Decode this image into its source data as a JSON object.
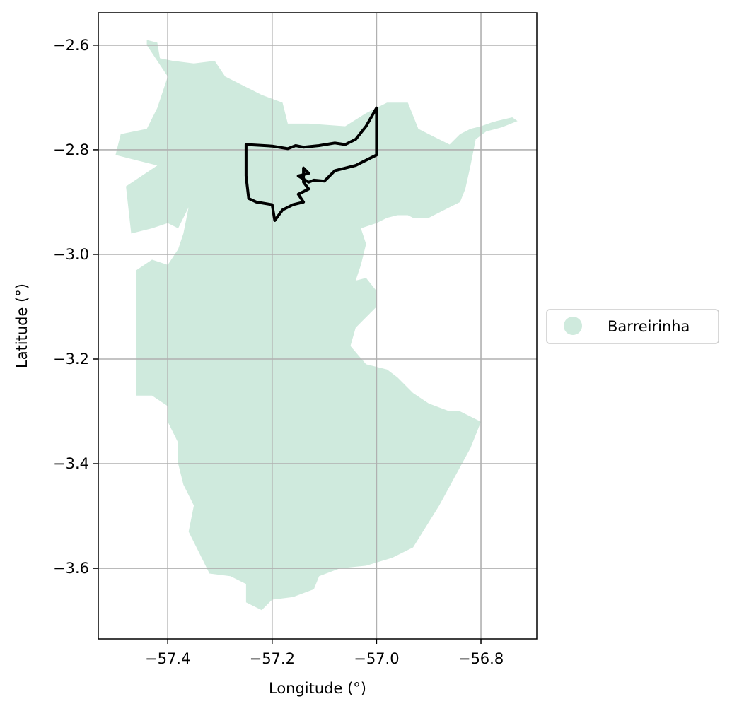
{
  "chart_data": {
    "type": "map",
    "xlabel": "Longitude (°)",
    "ylabel": "Latitude (°)",
    "xlim": [
      -57.533,
      -56.693
    ],
    "ylim": [
      -3.735,
      -2.538
    ],
    "x_ticks": [
      -57.4,
      -57.2,
      -57.0,
      -56.8
    ],
    "y_ticks": [
      -2.6,
      -2.8,
      -3.0,
      -3.2,
      -3.4,
      -3.6
    ],
    "x_tick_labels": [
      "−57.4",
      "−57.2",
      "−57.0",
      "−56.8"
    ],
    "y_tick_labels": [
      "−2.6",
      "−2.8",
      "−3.0",
      "−3.2",
      "−3.4",
      "−3.6"
    ],
    "grid": true,
    "legend": {
      "placement": "right",
      "entries": [
        {
          "label": "Barreirinha",
          "color": "#cfeadd"
        }
      ]
    },
    "colors": {
      "region_fill": "#cfeadd",
      "outline": "#000000",
      "grid": "#b0b0b0"
    },
    "region": {
      "name": "Barreirinha",
      "polygon": [
        [
          -57.44,
          -2.59
        ],
        [
          -57.42,
          -2.595
        ],
        [
          -57.415,
          -2.625
        ],
        [
          -57.39,
          -2.63
        ],
        [
          -57.35,
          -2.635
        ],
        [
          -57.31,
          -2.63
        ],
        [
          -57.29,
          -2.66
        ],
        [
          -57.25,
          -2.68
        ],
        [
          -57.22,
          -2.695
        ],
        [
          -57.18,
          -2.71
        ],
        [
          -57.17,
          -2.75
        ],
        [
          -57.13,
          -2.75
        ],
        [
          -57.06,
          -2.755
        ],
        [
          -57.02,
          -2.73
        ],
        [
          -56.98,
          -2.71
        ],
        [
          -56.94,
          -2.71
        ],
        [
          -56.92,
          -2.76
        ],
        [
          -56.9,
          -2.77
        ],
        [
          -56.86,
          -2.79
        ],
        [
          -56.84,
          -2.77
        ],
        [
          -56.82,
          -2.76
        ],
        [
          -56.8,
          -2.755
        ],
        [
          -56.78,
          -2.748
        ],
        [
          -56.77,
          -2.745
        ],
        [
          -56.74,
          -2.738
        ],
        [
          -56.73,
          -2.745
        ],
        [
          -56.76,
          -2.757
        ],
        [
          -56.79,
          -2.765
        ],
        [
          -56.81,
          -2.78
        ],
        [
          -56.82,
          -2.83
        ],
        [
          -56.83,
          -2.875
        ],
        [
          -56.84,
          -2.9
        ],
        [
          -56.86,
          -2.91
        ],
        [
          -56.9,
          -2.93
        ],
        [
          -56.93,
          -2.93
        ],
        [
          -56.94,
          -2.925
        ],
        [
          -56.96,
          -2.925
        ],
        [
          -56.98,
          -2.93
        ],
        [
          -57.0,
          -2.94
        ],
        [
          -57.03,
          -2.95
        ],
        [
          -57.02,
          -2.98
        ],
        [
          -57.03,
          -3.02
        ],
        [
          -57.04,
          -3.05
        ],
        [
          -57.02,
          -3.045
        ],
        [
          -57.0,
          -3.07
        ],
        [
          -57.0,
          -3.1
        ],
        [
          -57.04,
          -3.14
        ],
        [
          -57.05,
          -3.175
        ],
        [
          -57.02,
          -3.21
        ],
        [
          -56.98,
          -3.22
        ],
        [
          -56.96,
          -3.235
        ],
        [
          -56.93,
          -3.265
        ],
        [
          -56.9,
          -3.285
        ],
        [
          -56.86,
          -3.3
        ],
        [
          -56.84,
          -3.3
        ],
        [
          -56.8,
          -3.32
        ],
        [
          -56.82,
          -3.37
        ],
        [
          -56.88,
          -3.48
        ],
        [
          -56.93,
          -3.56
        ],
        [
          -56.97,
          -3.58
        ],
        [
          -57.02,
          -3.595
        ],
        [
          -57.07,
          -3.6
        ],
        [
          -57.11,
          -3.615
        ],
        [
          -57.12,
          -3.64
        ],
        [
          -57.16,
          -3.655
        ],
        [
          -57.2,
          -3.66
        ],
        [
          -57.22,
          -3.68
        ],
        [
          -57.25,
          -3.665
        ],
        [
          -57.25,
          -3.63
        ],
        [
          -57.28,
          -3.615
        ],
        [
          -57.32,
          -3.61
        ],
        [
          -57.34,
          -3.57
        ],
        [
          -57.36,
          -3.53
        ],
        [
          -57.35,
          -3.48
        ],
        [
          -57.37,
          -3.44
        ],
        [
          -57.38,
          -3.4
        ],
        [
          -57.38,
          -3.36
        ],
        [
          -57.4,
          -3.32
        ],
        [
          -57.4,
          -3.29
        ],
        [
          -57.43,
          -3.27
        ],
        [
          -57.46,
          -3.27
        ],
        [
          -57.46,
          -3.03
        ],
        [
          -57.43,
          -3.01
        ],
        [
          -57.4,
          -3.02
        ],
        [
          -57.38,
          -2.99
        ],
        [
          -57.37,
          -2.96
        ],
        [
          -57.36,
          -2.91
        ],
        [
          -57.38,
          -2.95
        ],
        [
          -57.4,
          -2.94
        ],
        [
          -57.43,
          -2.95
        ],
        [
          -57.47,
          -2.96
        ],
        [
          -57.48,
          -2.87
        ],
        [
          -57.45,
          -2.85
        ],
        [
          -57.42,
          -2.83
        ],
        [
          -57.46,
          -2.82
        ],
        [
          -57.5,
          -2.81
        ],
        [
          -57.49,
          -2.77
        ],
        [
          -57.44,
          -2.76
        ],
        [
          -57.42,
          -2.72
        ],
        [
          -57.4,
          -2.66
        ],
        [
          -57.42,
          -2.63
        ],
        [
          -57.44,
          -2.6
        ]
      ]
    },
    "outline": {
      "polygon": [
        [
          -57.25,
          -2.79
        ],
        [
          -57.2,
          -2.793
        ],
        [
          -57.17,
          -2.798
        ],
        [
          -57.155,
          -2.792
        ],
        [
          -57.14,
          -2.795
        ],
        [
          -57.11,
          -2.792
        ],
        [
          -57.08,
          -2.787
        ],
        [
          -57.06,
          -2.79
        ],
        [
          -57.04,
          -2.78
        ],
        [
          -57.02,
          -2.755
        ],
        [
          -57.0,
          -2.72
        ],
        [
          -57.0,
          -2.81
        ],
        [
          -57.02,
          -2.82
        ],
        [
          -57.04,
          -2.83
        ],
        [
          -57.06,
          -2.835
        ],
        [
          -57.08,
          -2.84
        ],
        [
          -57.09,
          -2.85
        ],
        [
          -57.1,
          -2.86
        ],
        [
          -57.12,
          -2.858
        ],
        [
          -57.13,
          -2.862
        ],
        [
          -57.15,
          -2.85
        ],
        [
          -57.13,
          -2.845
        ],
        [
          -57.14,
          -2.835
        ],
        [
          -57.14,
          -2.862
        ],
        [
          -57.13,
          -2.875
        ],
        [
          -57.15,
          -2.885
        ],
        [
          -57.14,
          -2.9
        ],
        [
          -57.16,
          -2.905
        ],
        [
          -57.18,
          -2.915
        ],
        [
          -57.195,
          -2.935
        ],
        [
          -57.2,
          -2.905
        ],
        [
          -57.23,
          -2.9
        ],
        [
          -57.245,
          -2.893
        ],
        [
          -57.25,
          -2.85
        ]
      ]
    }
  }
}
